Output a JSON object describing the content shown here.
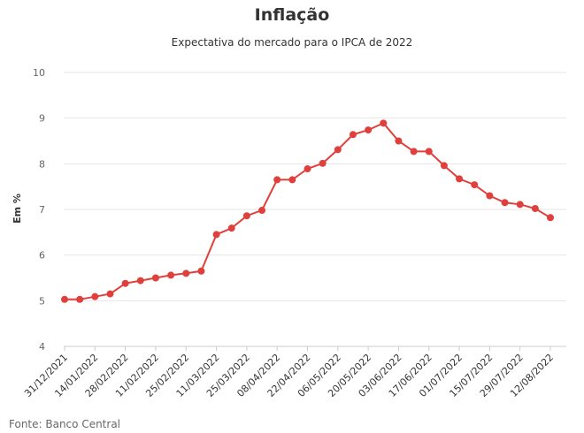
{
  "chart_data": {
    "type": "line",
    "title": "Inflação",
    "subtitle": "Expectativa do mercado para o IPCA de 2022",
    "xlabel": "",
    "ylabel": "Em %",
    "ylim": [
      4,
      10
    ],
    "yticks": [
      4,
      5,
      6,
      7,
      8,
      9,
      10
    ],
    "grid": true,
    "source": "Fonte: Banco Central",
    "x_tick_labels": [
      "31/12/2021",
      "14/01/2022",
      "28/02/2022",
      "11/02/2022",
      "25/02/2022",
      "11/03/2022",
      "25/03/2022",
      "08/04/2022",
      "22/04/2022",
      "06/05/2022",
      "20/05/2022",
      "03/06/2022",
      "17/06/2022",
      "01/07/2022",
      "15/07/2022",
      "29/07/2022",
      "12/08/2022"
    ],
    "series": [
      {
        "color": "#e0403c",
        "values": [
          5.03,
          5.03,
          5.09,
          5.15,
          5.38,
          5.44,
          5.5,
          5.56,
          5.6,
          5.65,
          6.45,
          6.59,
          6.86,
          6.98,
          7.65,
          7.65,
          7.89,
          8.01,
          8.31,
          8.64,
          8.74,
          8.89,
          8.5,
          8.27,
          8.27,
          7.96,
          7.67,
          7.54,
          7.3,
          7.15,
          7.11,
          7.02,
          6.82
        ]
      }
    ]
  }
}
